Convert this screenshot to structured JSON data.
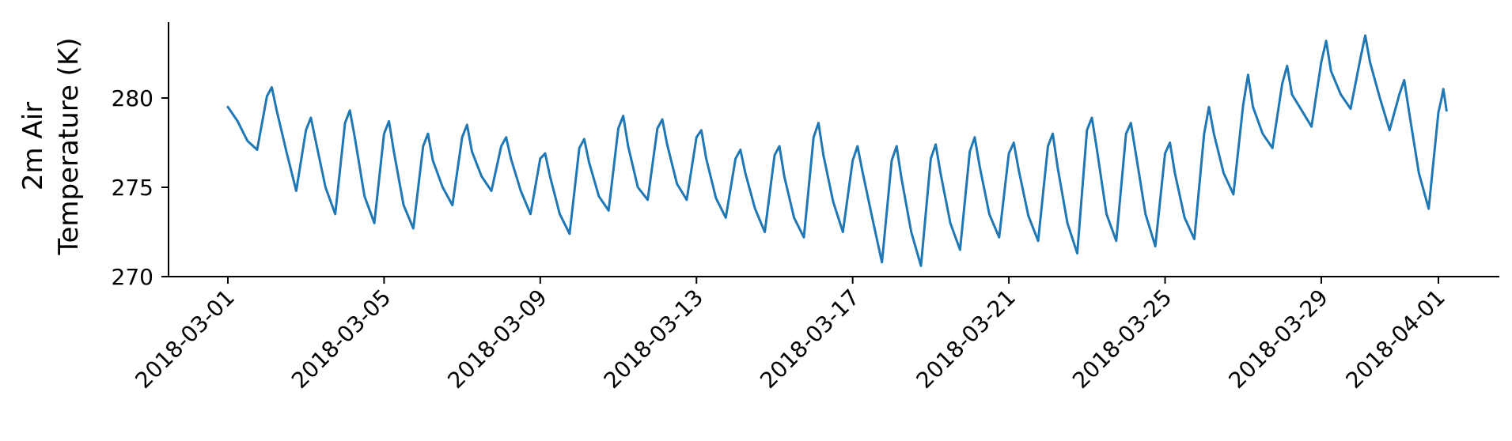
{
  "chart_data": {
    "type": "line",
    "title": "",
    "xlabel": "",
    "ylabel_lines": [
      "2m Air",
      "Temperature (K)"
    ],
    "ylim": [
      270,
      284
    ],
    "xlim": [
      "2018-03-01",
      "2018-04-01"
    ],
    "grid": false,
    "line_color": "#1f77b4",
    "yticks": [
      270,
      275,
      280
    ],
    "ytick_labels": [
      "270",
      "275",
      "280"
    ],
    "xticks": [
      "2018-03-01",
      "2018-03-05",
      "2018-03-09",
      "2018-03-13",
      "2018-03-17",
      "2018-03-21",
      "2018-03-25",
      "2018-03-29",
      "2018-04-01"
    ],
    "xtick_labels": [
      "2018-03-01",
      "2018-03-05",
      "2018-03-09",
      "2018-03-13",
      "2018-03-17",
      "2018-03-21",
      "2018-03-25",
      "2018-03-29",
      "2018-04-01"
    ],
    "series": [
      {
        "values": [
          [
            "2018-03-01 00:00",
            279.5
          ],
          [
            "2018-03-01 06:00",
            278.7
          ],
          [
            "2018-03-01 12:00",
            277.6
          ],
          [
            "2018-03-01 18:00",
            277.1
          ],
          [
            "2018-03-02 00:00",
            280.1
          ],
          [
            "2018-03-02 03:00",
            280.6
          ],
          [
            "2018-03-02 06:00",
            279.3
          ],
          [
            "2018-03-02 12:00",
            277.0
          ],
          [
            "2018-03-02 18:00",
            274.8
          ],
          [
            "2018-03-03 00:00",
            278.2
          ],
          [
            "2018-03-03 03:00",
            278.9
          ],
          [
            "2018-03-03 06:00",
            277.6
          ],
          [
            "2018-03-03 12:00",
            275.0
          ],
          [
            "2018-03-03 18:00",
            273.5
          ],
          [
            "2018-03-04 00:00",
            278.6
          ],
          [
            "2018-03-04 03:00",
            279.3
          ],
          [
            "2018-03-04 06:00",
            277.8
          ],
          [
            "2018-03-04 12:00",
            274.5
          ],
          [
            "2018-03-04 18:00",
            273.0
          ],
          [
            "2018-03-05 00:00",
            278.0
          ],
          [
            "2018-03-05 03:00",
            278.7
          ],
          [
            "2018-03-05 06:00",
            277.0
          ],
          [
            "2018-03-05 12:00",
            274.0
          ],
          [
            "2018-03-05 18:00",
            272.7
          ],
          [
            "2018-03-06 00:00",
            277.3
          ],
          [
            "2018-03-06 03:00",
            278.0
          ],
          [
            "2018-03-06 06:00",
            276.5
          ],
          [
            "2018-03-06 12:00",
            275.0
          ],
          [
            "2018-03-06 18:00",
            274.0
          ],
          [
            "2018-03-07 00:00",
            277.8
          ],
          [
            "2018-03-07 03:00",
            278.5
          ],
          [
            "2018-03-07 06:00",
            277.0
          ],
          [
            "2018-03-07 12:00",
            275.6
          ],
          [
            "2018-03-07 18:00",
            274.8
          ],
          [
            "2018-03-08 00:00",
            277.3
          ],
          [
            "2018-03-08 03:00",
            277.8
          ],
          [
            "2018-03-08 06:00",
            276.6
          ],
          [
            "2018-03-08 12:00",
            274.8
          ],
          [
            "2018-03-08 18:00",
            273.5
          ],
          [
            "2018-03-09 00:00",
            276.6
          ],
          [
            "2018-03-09 03:00",
            276.9
          ],
          [
            "2018-03-09 06:00",
            275.6
          ],
          [
            "2018-03-09 12:00",
            273.5
          ],
          [
            "2018-03-09 18:00",
            272.4
          ],
          [
            "2018-03-10 00:00",
            277.2
          ],
          [
            "2018-03-10 03:00",
            277.7
          ],
          [
            "2018-03-10 06:00",
            276.4
          ],
          [
            "2018-03-10 12:00",
            274.5
          ],
          [
            "2018-03-10 18:00",
            273.7
          ],
          [
            "2018-03-11 00:00",
            278.3
          ],
          [
            "2018-03-11 03:00",
            279.0
          ],
          [
            "2018-03-11 06:00",
            277.3
          ],
          [
            "2018-03-11 12:00",
            275.0
          ],
          [
            "2018-03-11 18:00",
            274.3
          ],
          [
            "2018-03-12 00:00",
            278.3
          ],
          [
            "2018-03-12 03:00",
            278.8
          ],
          [
            "2018-03-12 06:00",
            277.4
          ],
          [
            "2018-03-12 12:00",
            275.2
          ],
          [
            "2018-03-12 18:00",
            274.3
          ],
          [
            "2018-03-13 00:00",
            277.8
          ],
          [
            "2018-03-13 03:00",
            278.2
          ],
          [
            "2018-03-13 06:00",
            276.6
          ],
          [
            "2018-03-13 12:00",
            274.4
          ],
          [
            "2018-03-13 18:00",
            273.3
          ],
          [
            "2018-03-14 00:00",
            276.6
          ],
          [
            "2018-03-14 03:00",
            277.1
          ],
          [
            "2018-03-14 06:00",
            275.8
          ],
          [
            "2018-03-14 12:00",
            273.8
          ],
          [
            "2018-03-14 18:00",
            272.5
          ],
          [
            "2018-03-15 00:00",
            276.8
          ],
          [
            "2018-03-15 03:00",
            277.3
          ],
          [
            "2018-03-15 06:00",
            275.6
          ],
          [
            "2018-03-15 12:00",
            273.3
          ],
          [
            "2018-03-15 18:00",
            272.2
          ],
          [
            "2018-03-16 00:00",
            277.8
          ],
          [
            "2018-03-16 03:00",
            278.6
          ],
          [
            "2018-03-16 06:00",
            276.8
          ],
          [
            "2018-03-16 12:00",
            274.2
          ],
          [
            "2018-03-16 18:00",
            272.5
          ],
          [
            "2018-03-17 00:00",
            276.5
          ],
          [
            "2018-03-17 03:00",
            277.3
          ],
          [
            "2018-03-17 06:00",
            275.9
          ],
          [
            "2018-03-17 12:00",
            273.3
          ],
          [
            "2018-03-17 18:00",
            270.8
          ],
          [
            "2018-03-18 00:00",
            276.5
          ],
          [
            "2018-03-18 03:00",
            277.3
          ],
          [
            "2018-03-18 06:00",
            275.5
          ],
          [
            "2018-03-18 12:00",
            272.5
          ],
          [
            "2018-03-18 18:00",
            270.6
          ],
          [
            "2018-03-19 00:00",
            276.6
          ],
          [
            "2018-03-19 03:00",
            277.4
          ],
          [
            "2018-03-19 06:00",
            275.8
          ],
          [
            "2018-03-19 12:00",
            273.0
          ],
          [
            "2018-03-19 18:00",
            271.5
          ],
          [
            "2018-03-20 00:00",
            277.0
          ],
          [
            "2018-03-20 03:00",
            277.8
          ],
          [
            "2018-03-20 06:00",
            276.2
          ],
          [
            "2018-03-20 12:00",
            273.5
          ],
          [
            "2018-03-20 18:00",
            272.2
          ],
          [
            "2018-03-21 00:00",
            276.9
          ],
          [
            "2018-03-21 03:00",
            277.5
          ],
          [
            "2018-03-21 06:00",
            276.0
          ],
          [
            "2018-03-21 12:00",
            273.4
          ],
          [
            "2018-03-21 18:00",
            272.0
          ],
          [
            "2018-03-22 00:00",
            277.3
          ],
          [
            "2018-03-22 03:00",
            278.0
          ],
          [
            "2018-03-22 06:00",
            276.1
          ],
          [
            "2018-03-22 12:00",
            273.0
          ],
          [
            "2018-03-22 18:00",
            271.3
          ],
          [
            "2018-03-23 00:00",
            278.2
          ],
          [
            "2018-03-23 03:00",
            278.9
          ],
          [
            "2018-03-23 06:00",
            277.2
          ],
          [
            "2018-03-23 12:00",
            273.5
          ],
          [
            "2018-03-23 18:00",
            272.0
          ],
          [
            "2018-03-24 00:00",
            278.0
          ],
          [
            "2018-03-24 03:00",
            278.6
          ],
          [
            "2018-03-24 06:00",
            276.9
          ],
          [
            "2018-03-24 12:00",
            273.5
          ],
          [
            "2018-03-24 18:00",
            271.7
          ],
          [
            "2018-03-25 00:00",
            276.9
          ],
          [
            "2018-03-25 03:00",
            277.5
          ],
          [
            "2018-03-25 06:00",
            275.8
          ],
          [
            "2018-03-25 12:00",
            273.3
          ],
          [
            "2018-03-25 18:00",
            272.1
          ],
          [
            "2018-03-26 00:00",
            278.0
          ],
          [
            "2018-03-26 03:00",
            279.5
          ],
          [
            "2018-03-26 06:00",
            278.0
          ],
          [
            "2018-03-26 12:00",
            275.8
          ],
          [
            "2018-03-26 18:00",
            274.6
          ],
          [
            "2018-03-27 00:00",
            279.6
          ],
          [
            "2018-03-27 03:00",
            281.3
          ],
          [
            "2018-03-27 06:00",
            279.5
          ],
          [
            "2018-03-27 12:00",
            278.0
          ],
          [
            "2018-03-27 18:00",
            277.2
          ],
          [
            "2018-03-28 00:00",
            280.8
          ],
          [
            "2018-03-28 03:00",
            281.8
          ],
          [
            "2018-03-28 06:00",
            280.2
          ],
          [
            "2018-03-28 12:00",
            279.3
          ],
          [
            "2018-03-28 18:00",
            278.4
          ],
          [
            "2018-03-29 00:00",
            282.0
          ],
          [
            "2018-03-29 03:00",
            283.2
          ],
          [
            "2018-03-29 06:00",
            281.5
          ],
          [
            "2018-03-29 12:00",
            280.2
          ],
          [
            "2018-03-29 18:00",
            279.4
          ],
          [
            "2018-03-30 00:00",
            282.2
          ],
          [
            "2018-03-30 03:00",
            283.5
          ],
          [
            "2018-03-30 06:00",
            282.0
          ],
          [
            "2018-03-30 12:00",
            280.0
          ],
          [
            "2018-03-30 18:00",
            278.2
          ],
          [
            "2018-03-31 00:00",
            280.2
          ],
          [
            "2018-03-31 03:00",
            281.0
          ],
          [
            "2018-03-31 06:00",
            279.2
          ],
          [
            "2018-03-31 12:00",
            275.8
          ],
          [
            "2018-03-31 18:00",
            273.8
          ],
          [
            "2018-04-01 00:00",
            279.2
          ],
          [
            "2018-04-01 02:00",
            280.0
          ],
          [
            "2018-04-01 03:00",
            280.5
          ],
          [
            "2018-04-01 05:00",
            279.3
          ]
        ]
      }
    ]
  }
}
